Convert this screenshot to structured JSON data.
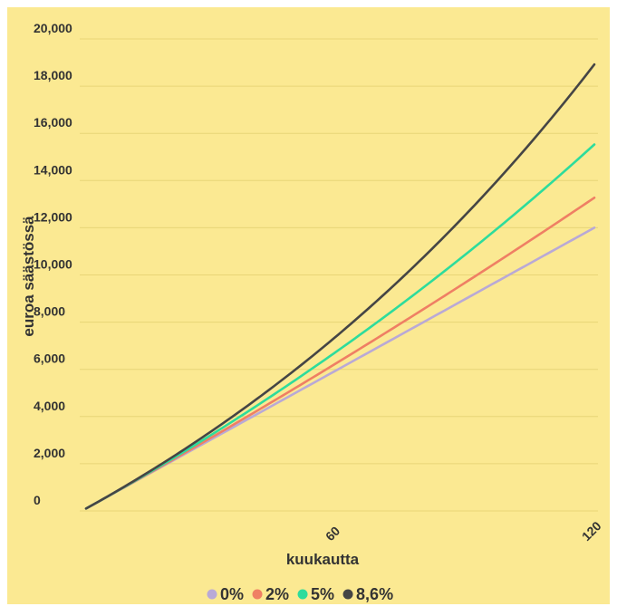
{
  "chart_data": {
    "type": "line",
    "xlabel": "kuukautta",
    "ylabel": "euroa säästössä",
    "x_ticks": [
      60,
      120
    ],
    "y_ticks": [
      "0",
      "2,000",
      "4,000",
      "6,000",
      "8,000",
      "10,000",
      "12,000",
      "14,000",
      "16,000",
      "18,000",
      "20,000"
    ],
    "xlim": [
      1,
      120
    ],
    "ylim": [
      0,
      20000
    ],
    "grid": true,
    "legend_position": "bottom",
    "background": "#fbe992",
    "monthly_deposit": 100,
    "series": [
      {
        "name": "0%",
        "rate": 0.0,
        "color": "#b9a9d6"
      },
      {
        "name": "2%",
        "rate": 0.02,
        "color": "#ef7f64"
      },
      {
        "name": "5%",
        "rate": 0.05,
        "color": "#2ddc9c"
      },
      {
        "name": "8,6%",
        "rate": 0.086,
        "color": "#454545"
      }
    ]
  }
}
